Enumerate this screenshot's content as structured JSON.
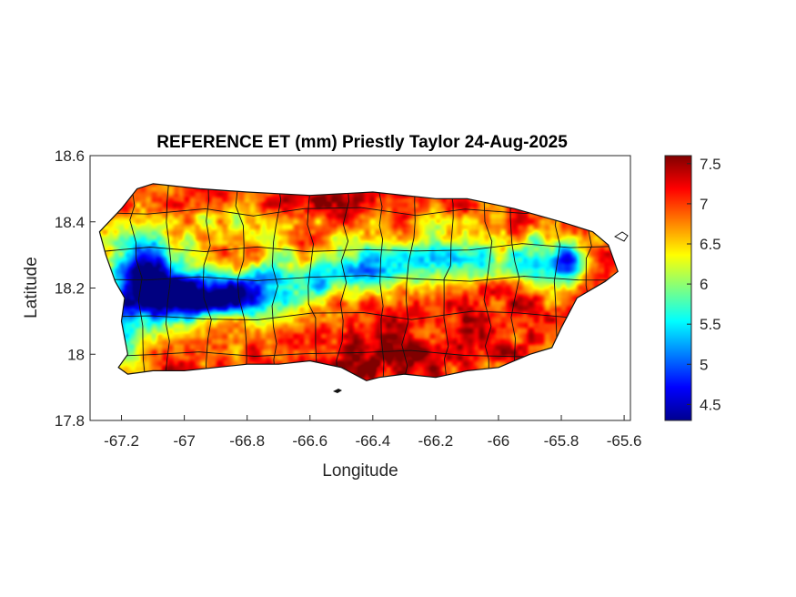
{
  "chart_data": {
    "type": "heatmap",
    "title": "REFERENCE ET (mm) Priestly Taylor 24-Aug-2025",
    "xlabel": "Longitude",
    "ylabel": "Latitude",
    "xlim": [
      -67.3,
      -65.58
    ],
    "ylim": [
      17.8,
      18.6
    ],
    "x_ticks": [
      -67.2,
      -67,
      -66.8,
      -66.6,
      -66.4,
      -66.2,
      -66,
      -65.8,
      -65.6
    ],
    "x_tick_labels": [
      "-67.2",
      "-67",
      "-66.8",
      "-66.6",
      "-66.4",
      "-66.2",
      "-66",
      "-65.8",
      "-65.6"
    ],
    "y_ticks": [
      17.8,
      18,
      18.2,
      18.4,
      18.6
    ],
    "y_tick_labels": [
      "17.8",
      "18",
      "18.2",
      "18.4",
      "18.6"
    ],
    "colorbar": {
      "colormap": "jet",
      "range": [
        4.3,
        7.6
      ],
      "ticks": [
        4.5,
        5,
        5.5,
        6,
        6.5,
        7,
        7.5
      ],
      "tick_labels": [
        "4.5",
        "5",
        "5.5",
        "6",
        "6.5",
        "7",
        "7.5"
      ]
    },
    "coastline": [
      [
        -67.27,
        18.37
      ],
      [
        -67.24,
        18.4
      ],
      [
        -67.2,
        18.44
      ],
      [
        -67.15,
        18.5
      ],
      [
        -67.1,
        18.515
      ],
      [
        -66.95,
        18.5
      ],
      [
        -66.8,
        18.49
      ],
      [
        -66.6,
        18.48
      ],
      [
        -66.4,
        18.49
      ],
      [
        -66.2,
        18.47
      ],
      [
        -66.1,
        18.47
      ],
      [
        -65.95,
        18.44
      ],
      [
        -65.8,
        18.4
      ],
      [
        -65.7,
        18.37
      ],
      [
        -65.65,
        18.33
      ],
      [
        -65.62,
        18.25
      ],
      [
        -65.66,
        18.22
      ],
      [
        -65.75,
        18.17
      ],
      [
        -65.8,
        18.08
      ],
      [
        -65.83,
        18.02
      ],
      [
        -65.9,
        18.0
      ],
      [
        -66.0,
        17.96
      ],
      [
        -66.1,
        17.95
      ],
      [
        -66.2,
        17.93
      ],
      [
        -66.3,
        17.94
      ],
      [
        -66.38,
        17.93
      ],
      [
        -66.42,
        17.92
      ],
      [
        -66.5,
        17.96
      ],
      [
        -66.6,
        17.98
      ],
      [
        -66.7,
        17.97
      ],
      [
        -66.8,
        17.97
      ],
      [
        -66.9,
        17.96
      ],
      [
        -67.0,
        17.95
      ],
      [
        -67.1,
        17.95
      ],
      [
        -67.18,
        17.94
      ],
      [
        -67.21,
        17.96
      ],
      [
        -67.18,
        18.0
      ],
      [
        -67.2,
        18.1
      ],
      [
        -67.19,
        18.17
      ],
      [
        -67.22,
        18.22
      ],
      [
        -67.25,
        18.3
      ]
    ],
    "value_field": {
      "base": 7.0,
      "features": [
        {
          "x": -67.13,
          "y": 18.22,
          "sx": 0.09,
          "sy": 0.07,
          "a": -2.1
        },
        {
          "x": -67.02,
          "y": 18.17,
          "sx": 0.1,
          "sy": 0.05,
          "a": -1.8
        },
        {
          "x": -66.9,
          "y": 18.18,
          "sx": 0.1,
          "sy": 0.05,
          "a": -1.5
        },
        {
          "x": -66.78,
          "y": 18.19,
          "sx": 0.08,
          "sy": 0.05,
          "a": -1.4
        },
        {
          "x": -67.18,
          "y": 18.07,
          "sx": 0.05,
          "sy": 0.08,
          "a": -1.2
        },
        {
          "x": -67.1,
          "y": 18.31,
          "sx": 0.1,
          "sy": 0.05,
          "a": -0.9
        },
        {
          "x": -66.65,
          "y": 18.22,
          "sx": 0.08,
          "sy": 0.05,
          "a": -1.0
        },
        {
          "x": -66.5,
          "y": 18.24,
          "sx": 0.1,
          "sy": 0.05,
          "a": -1.0
        },
        {
          "x": -66.35,
          "y": 18.26,
          "sx": 0.1,
          "sy": 0.05,
          "a": -0.9
        },
        {
          "x": -66.18,
          "y": 18.28,
          "sx": 0.1,
          "sy": 0.05,
          "a": -0.9
        },
        {
          "x": -66.02,
          "y": 18.27,
          "sx": 0.09,
          "sy": 0.05,
          "a": -0.9
        },
        {
          "x": -65.85,
          "y": 18.3,
          "sx": 0.07,
          "sy": 0.05,
          "a": -1.1
        },
        {
          "x": -65.77,
          "y": 18.28,
          "sx": 0.04,
          "sy": 0.04,
          "a": -1.6
        },
        {
          "x": -65.82,
          "y": 18.23,
          "sx": 0.05,
          "sy": 0.05,
          "a": -0.6
        },
        {
          "x": -66.7,
          "y": 18.37,
          "sx": 0.08,
          "sy": 0.05,
          "a": -0.5
        },
        {
          "x": -66.9,
          "y": 18.41,
          "sx": 0.08,
          "sy": 0.04,
          "a": -0.5
        },
        {
          "x": -66.45,
          "y": 18.34,
          "sx": 0.07,
          "sy": 0.04,
          "a": -0.5
        },
        {
          "x": -66.2,
          "y": 18.37,
          "sx": 0.07,
          "sy": 0.05,
          "a": -0.4
        },
        {
          "x": -66.6,
          "y": 18.47,
          "sx": 0.2,
          "sy": 0.03,
          "a": 0.25
        },
        {
          "x": -66.4,
          "y": 17.98,
          "sx": 0.15,
          "sy": 0.05,
          "a": 0.45
        },
        {
          "x": -66.0,
          "y": 18.15,
          "sx": 0.1,
          "sy": 0.06,
          "a": 0.25
        },
        {
          "x": -66.22,
          "y": 18.02,
          "sx": 0.1,
          "sy": 0.04,
          "a": 0.3
        }
      ]
    }
  }
}
